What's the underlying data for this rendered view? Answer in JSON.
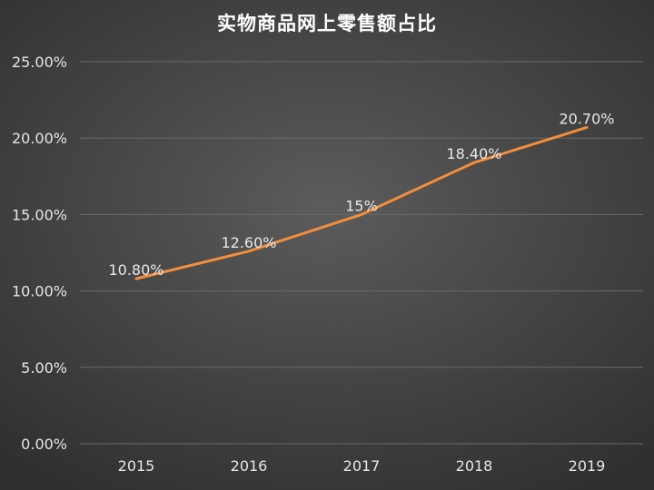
{
  "chart_data": {
    "type": "line",
    "title": "实物商品网上零售额占比",
    "categories": [
      "2015",
      "2016",
      "2017",
      "2018",
      "2019"
    ],
    "series": [
      {
        "values": [
          10.8,
          12.6,
          15,
          18.4,
          20.7
        ],
        "data_labels": [
          "10.80%",
          "12.60%",
          "15%",
          "18.40%",
          "20.70%"
        ],
        "color": "#f28e3c"
      }
    ],
    "yticks": [
      "0.00%",
      "5.00%",
      "10.00%",
      "15.00%",
      "20.00%",
      "25.00%"
    ],
    "ylim": [
      0,
      25
    ],
    "xlabel": "",
    "ylabel": "",
    "grid": true,
    "legend": "none"
  }
}
